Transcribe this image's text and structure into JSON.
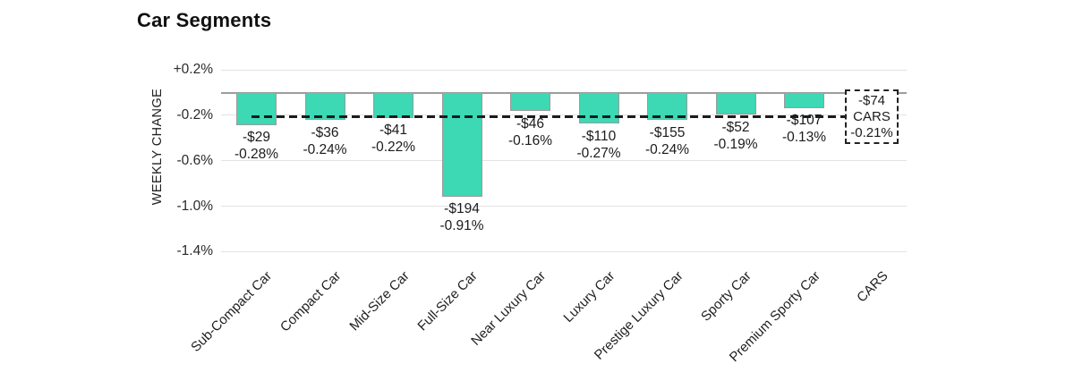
{
  "chart_data": {
    "type": "bar",
    "title": "Car Segments",
    "ylabel": "WEEKLY CHANGE",
    "y_ticks": [
      {
        "label": "+0.2%",
        "value": 0.2
      },
      {
        "label": "-0.2%",
        "value": -0.2
      },
      {
        "label": "-0.6%",
        "value": -0.6
      },
      {
        "label": "-1.0%",
        "value": -1.0
      },
      {
        "label": "-1.4%",
        "value": -1.4
      }
    ],
    "ylim": [
      -1.4,
      0.2
    ],
    "grid": "horizontal",
    "legend": "none",
    "colors": {
      "bar_fill": "#3DD8B4",
      "bar_border": "#9b9b9b",
      "reference_line": "#1c1c1c"
    },
    "categories": [
      "Sub-Compact Car",
      "Compact Car",
      "Mid-Size Car",
      "Full-Size Car",
      "Near Luxury Car",
      "Luxury Car",
      "Prestige Luxury Car",
      "Sporty Car",
      "Premium Sporty Car",
      "CARS"
    ],
    "bars": [
      {
        "category": "Sub-Compact Car",
        "dollar_label": "-$29",
        "pct_label": "-0.28%",
        "dollar": -29,
        "pct": -0.28
      },
      {
        "category": "Compact Car",
        "dollar_label": "-$36",
        "pct_label": "-0.24%",
        "dollar": -36,
        "pct": -0.24
      },
      {
        "category": "Mid-Size Car",
        "dollar_label": "-$41",
        "pct_label": "-0.22%",
        "dollar": -41,
        "pct": -0.22
      },
      {
        "category": "Full-Size Car",
        "dollar_label": "-$194",
        "pct_label": "-0.91%",
        "dollar": -194,
        "pct": -0.91
      },
      {
        "category": "Near Luxury Car",
        "dollar_label": "-$46",
        "pct_label": "-0.16%",
        "dollar": -46,
        "pct": -0.16
      },
      {
        "category": "Luxury Car",
        "dollar_label": "-$110",
        "pct_label": "-0.27%",
        "dollar": -110,
        "pct": -0.27
      },
      {
        "category": "Prestige Luxury Car",
        "dollar_label": "-$155",
        "pct_label": "-0.24%",
        "dollar": -155,
        "pct": -0.24
      },
      {
        "category": "Sporty Car",
        "dollar_label": "-$52",
        "pct_label": "-0.19%",
        "dollar": -52,
        "pct": -0.19
      },
      {
        "category": "Premium Sporty Car",
        "dollar_label": "-$107",
        "pct_label": "-0.13%",
        "dollar": -107,
        "pct": -0.13
      }
    ],
    "reference": {
      "category": "CARS",
      "box_lines": [
        "-$74",
        "CARS",
        "-0.21%"
      ],
      "dollar": -74,
      "pct": -0.21,
      "line_style": "dashed"
    }
  }
}
